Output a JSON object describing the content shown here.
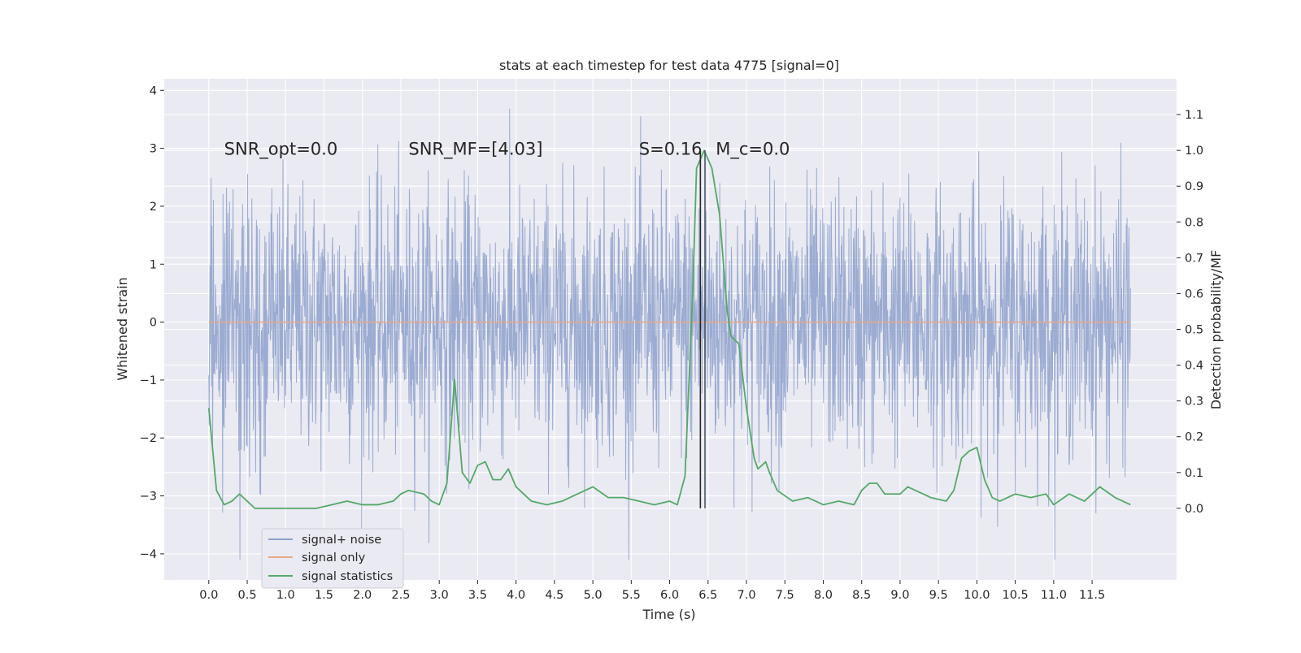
{
  "chart_data": {
    "type": "line",
    "title": "stats at each timestep for test data 4775 [signal=0]",
    "xlabel": "Time (s)",
    "ylabel": "Whitened strain",
    "ylabel_right": "Detection probability/MF",
    "xlim": [
      -0.58,
      12.6
    ],
    "ylim": [
      -4.45,
      4.2
    ],
    "ylim_right": [
      -0.2,
      1.2
    ],
    "x_ticks": [
      0.0,
      0.5,
      1.0,
      1.5,
      2.0,
      2.5,
      3.0,
      3.5,
      4.0,
      4.5,
      5.0,
      5.5,
      6.0,
      6.5,
      7.0,
      7.5,
      8.0,
      8.5,
      9.0,
      9.5,
      10.0,
      10.5,
      11.0,
      11.5
    ],
    "x_tick_labels": [
      "0.0",
      "0.5",
      "1.0",
      "1.5",
      "2.0",
      "2.5",
      "3.0",
      "3.5",
      "4.0",
      "4.5",
      "5.0",
      "5.5",
      "6.0",
      "6.5",
      "7.0",
      "7.5",
      "8.0",
      "8.5",
      "9.0",
      "9.5",
      "10.0",
      "10.5",
      "11.0",
      "11.5"
    ],
    "y_ticks": [
      -4,
      -3,
      -2,
      -1,
      0,
      1,
      2,
      3,
      4
    ],
    "y_tick_labels": [
      "−4",
      "−3",
      "−2",
      "−1",
      "0",
      "1",
      "2",
      "3",
      "4"
    ],
    "y_ticks_right": [
      0.0,
      0.1,
      0.2,
      0.3,
      0.4,
      0.5,
      0.6,
      0.7,
      0.8,
      0.9,
      1.0,
      1.1
    ],
    "y_tick_labels_right": [
      "0.0",
      "0.1",
      "0.2",
      "0.3",
      "0.4",
      "0.5",
      "0.6",
      "0.7",
      "0.8",
      "0.9",
      "1.0",
      "1.1"
    ],
    "grid": true,
    "legend_position": "lower-left",
    "series": [
      {
        "name": "signal+ noise",
        "color": "#8da0cb",
        "axis": "left",
        "x_range": [
          0.0,
          12.0
        ],
        "envelope": {
          "typical_low": -1.8,
          "typical_high": 1.8,
          "min": -4.1,
          "max": 3.8
        }
      },
      {
        "name": "signal only",
        "color": "#e8a887",
        "axis": "left",
        "x": [
          0.0,
          12.0
        ],
        "y": [
          0.0,
          0.0
        ]
      },
      {
        "name": "signal statistics",
        "color": "#55a868",
        "axis": "right",
        "x": [
          0.0,
          0.1,
          0.2,
          0.3,
          0.4,
          0.5,
          0.6,
          0.8,
          1.0,
          1.2,
          1.4,
          1.6,
          1.8,
          2.0,
          2.2,
          2.4,
          2.5,
          2.6,
          2.8,
          2.9,
          3.0,
          3.1,
          3.2,
          3.3,
          3.4,
          3.5,
          3.6,
          3.7,
          3.8,
          3.9,
          4.0,
          4.2,
          4.4,
          4.6,
          4.8,
          5.0,
          5.2,
          5.4,
          5.6,
          5.8,
          6.0,
          6.1,
          6.2,
          6.3,
          6.35,
          6.45,
          6.55,
          6.65,
          6.75,
          6.8,
          6.9,
          7.0,
          7.1,
          7.15,
          7.25,
          7.3,
          7.4,
          7.6,
          7.8,
          8.0,
          8.2,
          8.4,
          8.5,
          8.6,
          8.7,
          8.8,
          9.0,
          9.1,
          9.2,
          9.4,
          9.6,
          9.7,
          9.8,
          9.9,
          10.0,
          10.1,
          10.2,
          10.3,
          10.5,
          10.7,
          10.9,
          11.0,
          11.2,
          11.4,
          11.6,
          11.8,
          12.0
        ],
        "y": [
          0.28,
          0.05,
          0.01,
          0.02,
          0.04,
          0.02,
          0.0,
          0.0,
          0.0,
          0.0,
          0.0,
          0.01,
          0.02,
          0.01,
          0.01,
          0.02,
          0.04,
          0.05,
          0.04,
          0.02,
          0.01,
          0.07,
          0.36,
          0.1,
          0.07,
          0.12,
          0.13,
          0.08,
          0.08,
          0.11,
          0.06,
          0.02,
          0.01,
          0.02,
          0.04,
          0.06,
          0.03,
          0.03,
          0.02,
          0.01,
          0.02,
          0.01,
          0.09,
          0.6,
          0.95,
          1.0,
          0.95,
          0.82,
          0.55,
          0.48,
          0.46,
          0.28,
          0.14,
          0.11,
          0.13,
          0.1,
          0.05,
          0.02,
          0.03,
          0.01,
          0.02,
          0.01,
          0.05,
          0.07,
          0.07,
          0.04,
          0.04,
          0.06,
          0.05,
          0.03,
          0.02,
          0.05,
          0.14,
          0.16,
          0.17,
          0.08,
          0.03,
          0.02,
          0.04,
          0.03,
          0.04,
          0.01,
          0.04,
          0.02,
          0.06,
          0.03,
          0.01
        ]
      }
    ],
    "vlines": [
      {
        "x": 6.4,
        "color": "#262626"
      },
      {
        "x": 6.46,
        "color": "#4c5766"
      }
    ],
    "annotations": [
      {
        "x": 0.2,
        "y": 3.0,
        "text": "SNR_opt=0.0"
      },
      {
        "x": 2.6,
        "y": 3.0,
        "text": "SNR_MF=[4.03]"
      },
      {
        "x": 5.6,
        "y": 3.0,
        "text": "S=0.16"
      },
      {
        "x": 6.6,
        "y": 3.0,
        "text": "M_c=0.0"
      }
    ]
  }
}
